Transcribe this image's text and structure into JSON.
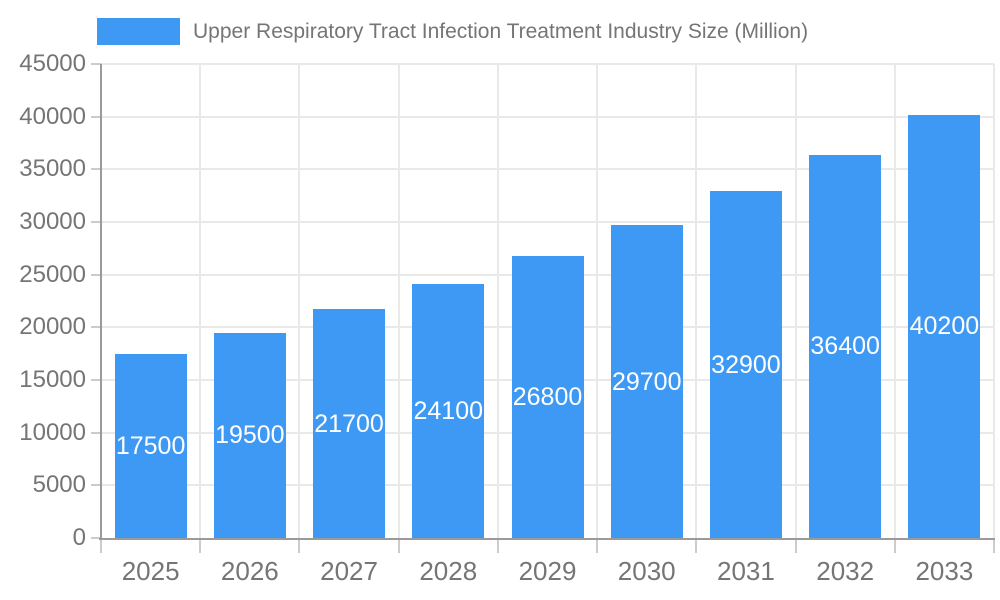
{
  "chart_data": {
    "type": "bar",
    "title": "Upper Respiratory Tract Infection Treatment Industry Size (Million)",
    "legend": {
      "position": "top",
      "entries": [
        "Upper Respiratory Tract Infection Treatment Industry Size (Million)"
      ]
    },
    "categories": [
      "2025",
      "2026",
      "2027",
      "2028",
      "2029",
      "2030",
      "2031",
      "2032",
      "2033"
    ],
    "values": [
      17500,
      19500,
      21700,
      24100,
      26800,
      29700,
      32900,
      36400,
      40200
    ],
    "bar_value_labels": [
      "17500",
      "19500",
      "21700",
      "24100",
      "26800",
      "29700",
      "32900",
      "36400",
      "40200"
    ],
    "xlabel": "",
    "ylabel": "",
    "ylim": [
      0,
      45000
    ],
    "yticks": [
      0,
      5000,
      10000,
      15000,
      20000,
      25000,
      30000,
      35000,
      40000,
      45000
    ],
    "grid": true,
    "colors": {
      "bar": "#3E99F4",
      "bar_label_text": "#ffffff",
      "axis_text": "#757575",
      "gridline": "#e9e9e9",
      "axis_line": "#9a9a9a",
      "tick": "#cccccc",
      "background": "#ffffff"
    }
  }
}
